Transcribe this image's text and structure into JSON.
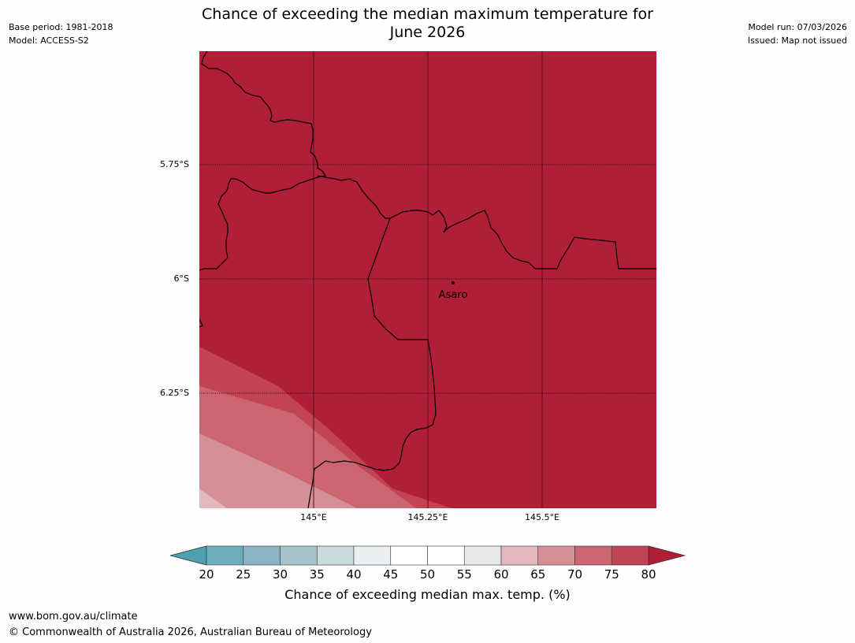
{
  "header": {
    "base_period": "Base period: 1981-2018",
    "model": "Model: ACCESS-S2",
    "model_run": "Model run: 07/03/2026",
    "issued": "Issued: Map not issued",
    "title_line1": "Chance of exceeding the median maximum temperature for",
    "title_line2": "June 2026"
  },
  "map": {
    "place_name": "Asaro",
    "lat_labels": [
      "5.75°S",
      "6°S",
      "6.25°S"
    ],
    "lon_labels": [
      "145°E",
      "145.25°E",
      "145.5°E"
    ],
    "dominant_category": "80+",
    "colors": {
      "gt80": "#b11e38",
      "c75": "#c14354",
      "c70": "#ca6571",
      "c65": "#d68f96",
      "c60": "#e2b8bc",
      "c55": "#e8e8e8",
      "c50": "#ffffff",
      "c45": "#ffffff",
      "c40": "#eaf0f2",
      "c35": "#c9d9dd",
      "c30": "#a7c4cb",
      "c25": "#8ab4c1",
      "lt20": "#4da0b0"
    }
  },
  "colorbar": {
    "ticks": [
      "20",
      "25",
      "30",
      "35",
      "40",
      "45",
      "50",
      "55",
      "60",
      "65",
      "70",
      "75",
      "80"
    ],
    "colors": [
      "#6eaebc",
      "#8ab4c1",
      "#a7c4cb",
      "#c9d9dd",
      "#eaf0f2",
      "#ffffff",
      "#ffffff",
      "#e8e8e8",
      "#e2b8bc",
      "#d68f96",
      "#ca6571",
      "#c14354"
    ],
    "low_extension_color": "#4da0b0",
    "high_extension_color": "#b11e38",
    "label": "Chance of exceeding median max. temp. (%)"
  },
  "footer": {
    "website": "www.bom.gov.au/climate",
    "copyright": "© Commonwealth of Australia 2026, Australian Bureau of Meteorology"
  }
}
